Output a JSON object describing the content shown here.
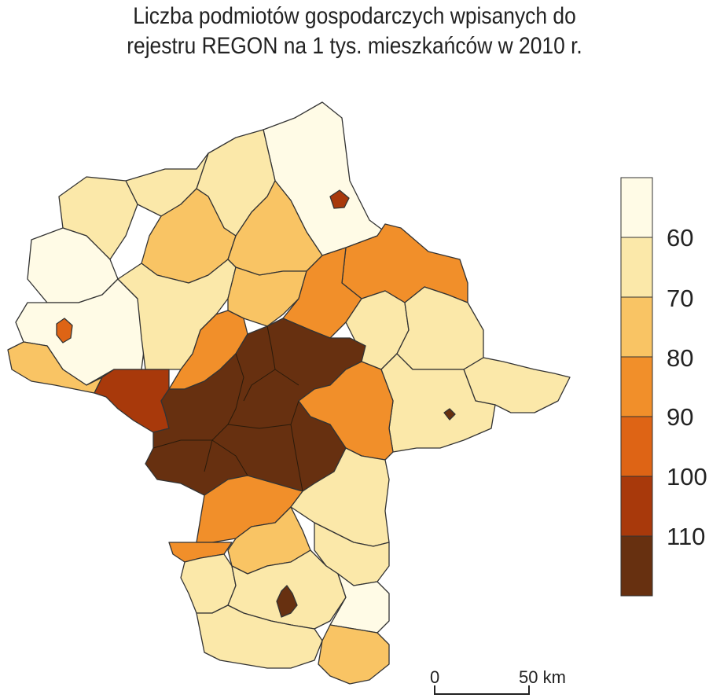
{
  "title": {
    "line1": "Liczba podmiotów gospodarczych wpisanych do",
    "line2": "rejestru REGON na 1 tys. mieszkańców w 2010 r."
  },
  "legend": {
    "classes": [
      {
        "color": "#fffbe6"
      },
      {
        "color": "#fbe8a9"
      },
      {
        "color": "#f9c464"
      },
      {
        "color": "#f18f2a"
      },
      {
        "color": "#de6415"
      },
      {
        "color": "#a8390b"
      },
      {
        "color": "#673010"
      }
    ],
    "breaks": [
      "60",
      "70",
      "80",
      "90",
      "100",
      "110"
    ]
  },
  "scalebar": {
    "start_label": "0",
    "end_label": "50 km"
  },
  "colors": {
    "c1": "#fffbe6",
    "c2": "#fbe8a9",
    "c3": "#f9c464",
    "c4": "#f18f2a",
    "c5": "#de6415",
    "c6": "#a8390b",
    "c7": "#673010",
    "border": "#333333"
  }
}
